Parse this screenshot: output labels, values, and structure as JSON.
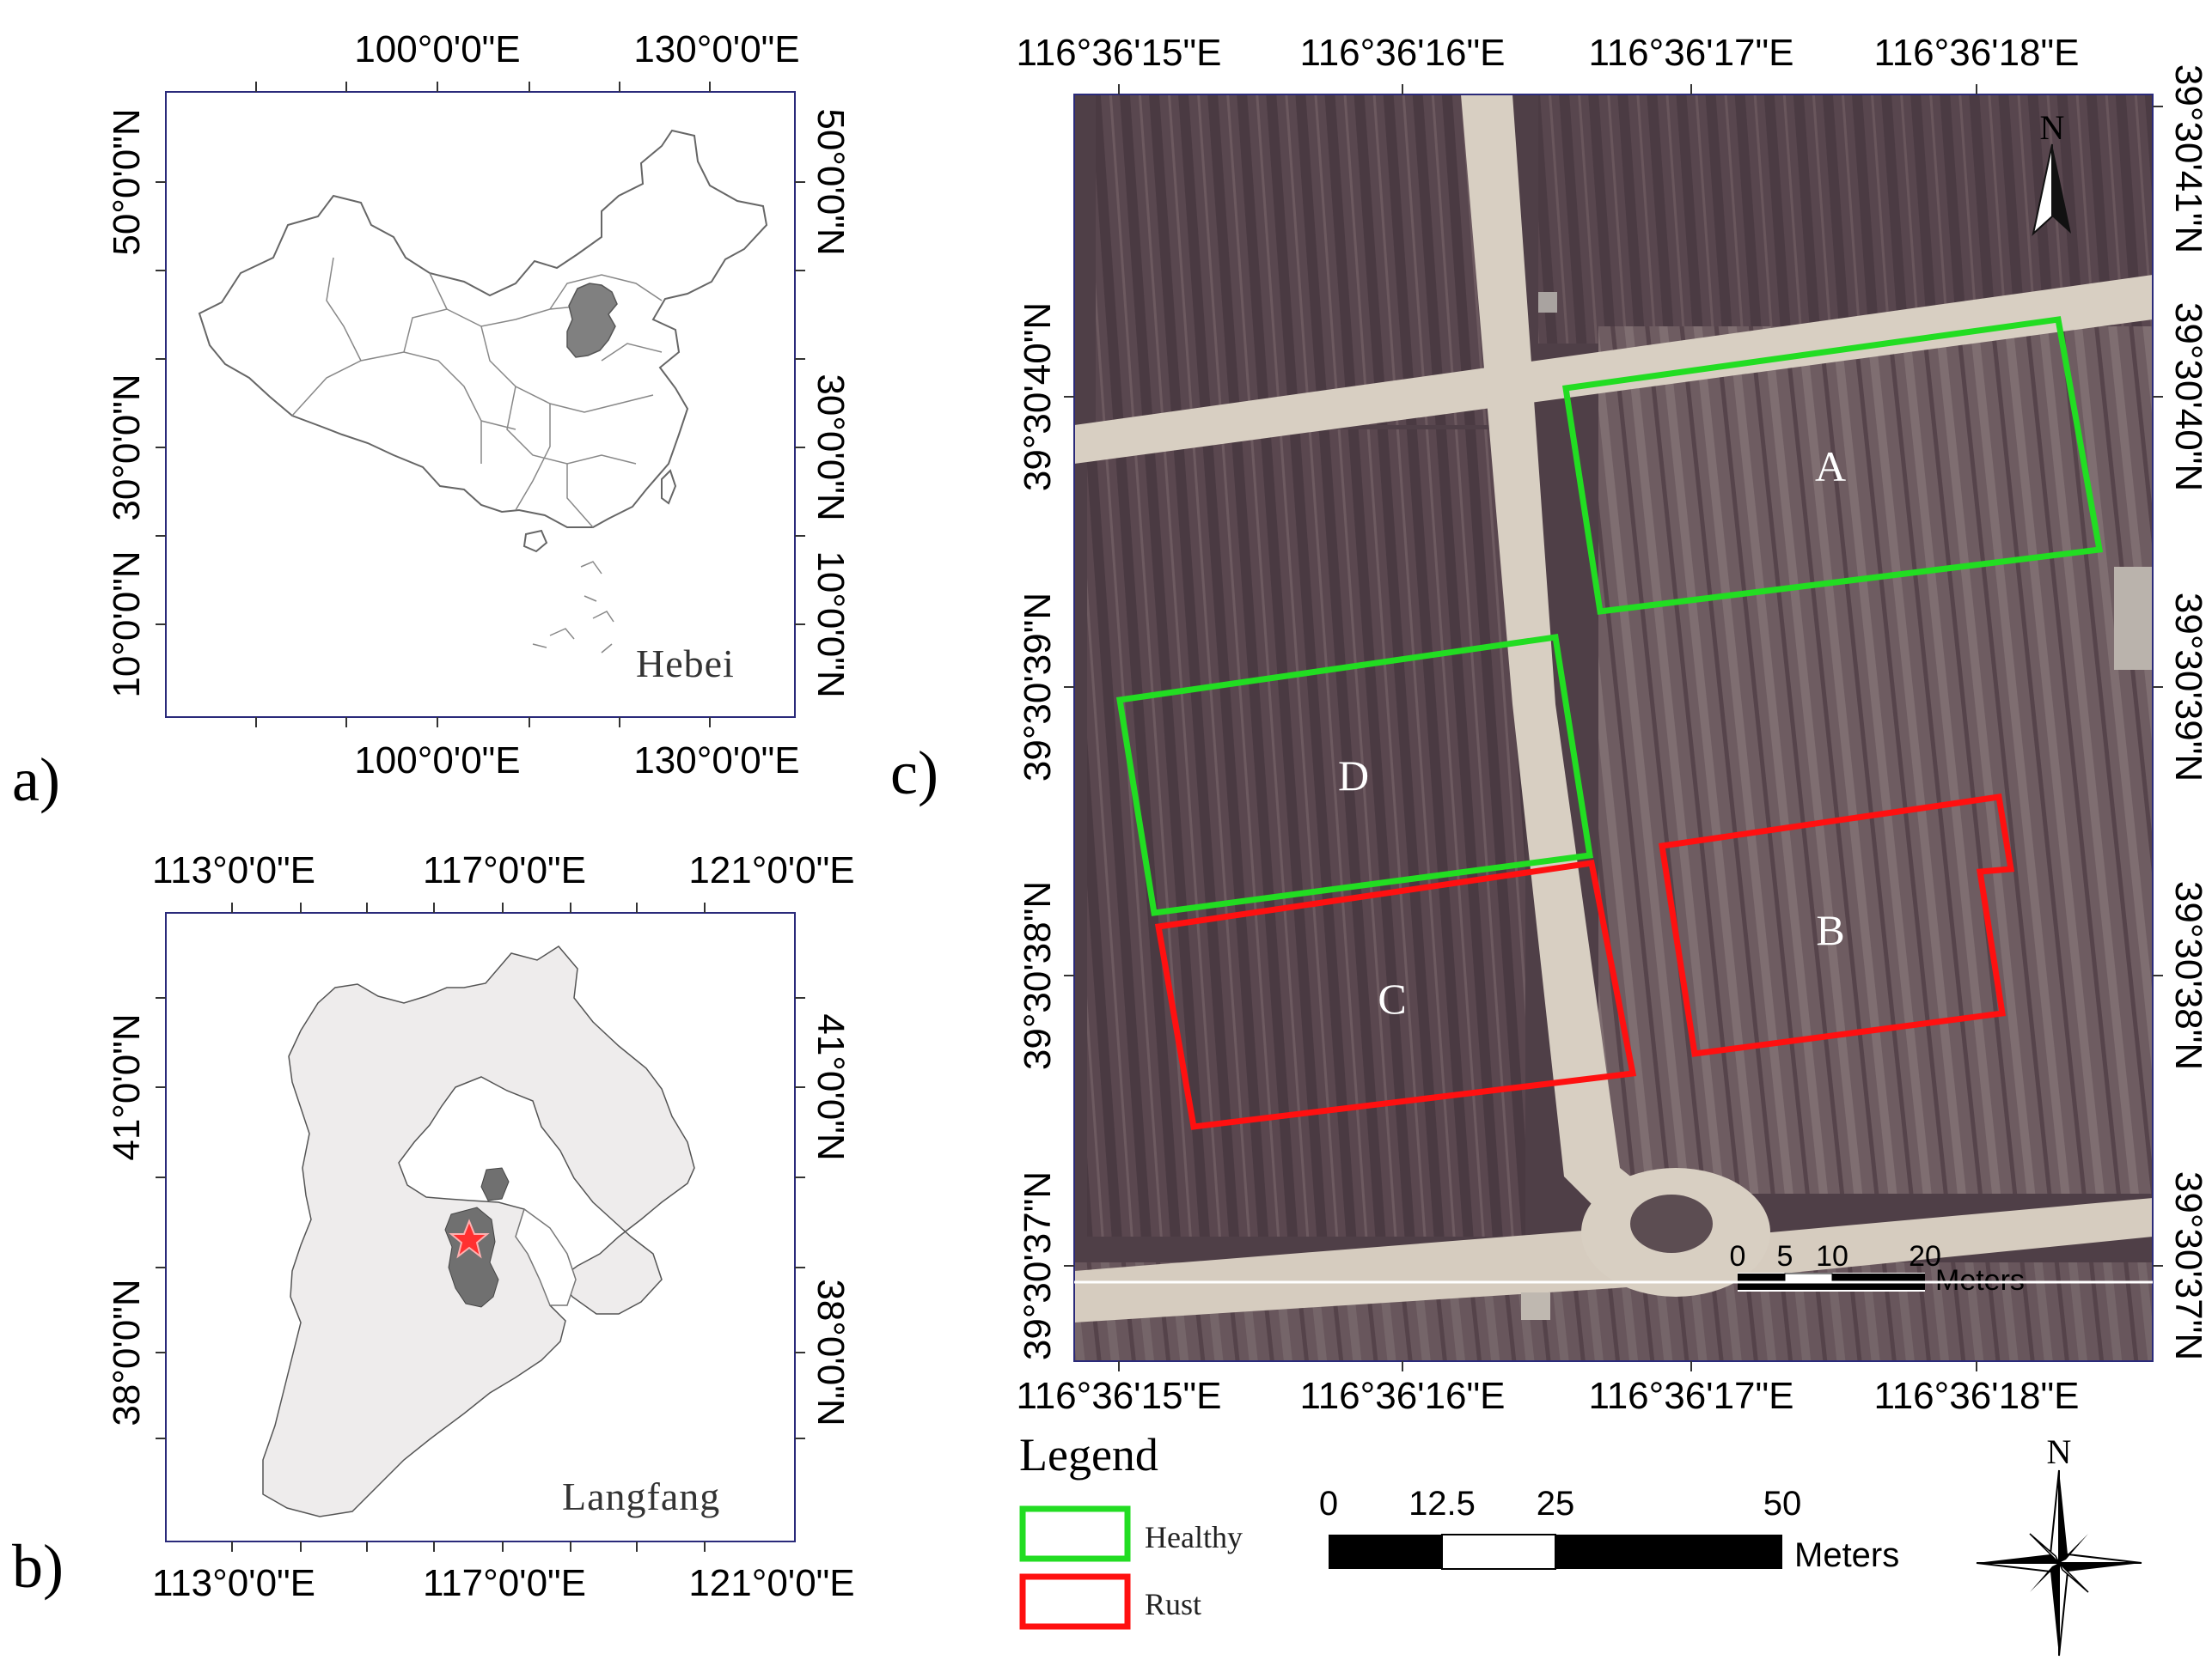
{
  "panels": {
    "a": {
      "label": "a)",
      "region_name": "Hebei",
      "top_ticks": [
        "100°0'0\"E",
        "130°0'0\"E"
      ],
      "bottom_ticks": [
        "100°0'0\"E",
        "130°0'0\"E"
      ],
      "left_ticks": [
        "50°0'0\"N",
        "30°0'0\"N",
        "10°0'0\"N"
      ],
      "right_ticks": [
        "50°0'0\"N",
        "30°0'0\"N",
        "10°0'0\"N"
      ]
    },
    "b": {
      "label": "b)",
      "region_name": "Langfang",
      "top_ticks": [
        "113°0'0\"E",
        "117°0'0\"E",
        "121°0'0\"E"
      ],
      "bottom_ticks": [
        "113°0'0\"E",
        "117°0'0\"E",
        "121°0'0\"E"
      ],
      "left_ticks": [
        "41°0'0\"N",
        "38°0'0\"N"
      ],
      "right_ticks": [
        "41°0'0\"N",
        "38°0'0\"N"
      ]
    },
    "c": {
      "label": "c)",
      "top_ticks": [
        "116°36'15\"E",
        "116°36'16\"E",
        "116°36'17\"E",
        "116°36'18\"E"
      ],
      "bottom_ticks": [
        "116°36'15\"E",
        "116°36'16\"E",
        "116°36'17\"E",
        "116°36'18\"E"
      ],
      "left_ticks": [
        "39°30'40\"N",
        "39°30'39\"N",
        "39°30'38\"N",
        "39°30'37\"N"
      ],
      "right_ticks": [
        "39°30'41\"N",
        "39°30'40\"N",
        "39°30'39\"N",
        "39°30'38\"N",
        "39°30'37\"N"
      ],
      "fields": [
        "A",
        "B",
        "C",
        "D"
      ],
      "inner_scale": {
        "ticks": [
          "0",
          "5",
          "10",
          "20"
        ],
        "unit": "Meters"
      },
      "north_label": "N"
    }
  },
  "legend": {
    "title": "Legend",
    "items": [
      {
        "label": "Healthy",
        "color": "#00dd00"
      },
      {
        "label": "Rust",
        "color": "#ff1010"
      }
    ]
  },
  "scale_bar": {
    "ticks": [
      "0",
      "12.5",
      "25",
      "50"
    ],
    "unit": "Meters"
  },
  "compass": {
    "label": "N"
  },
  "colors": {
    "highlight": "#808080",
    "province_fill": "#eeecec",
    "star": "#ff3030",
    "frame": "#2a2a7a"
  }
}
